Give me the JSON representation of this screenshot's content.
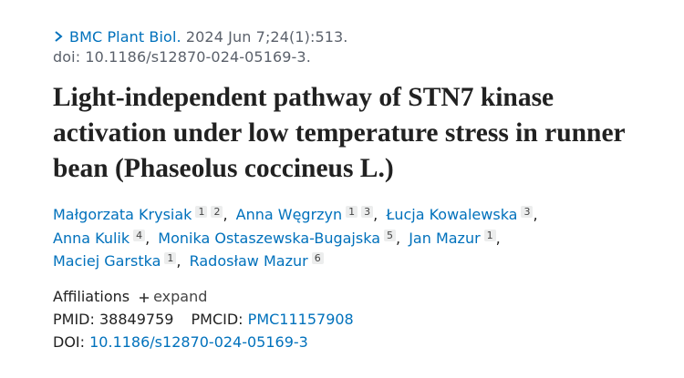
{
  "citation": {
    "journal": "BMC Plant Biol.",
    "details": "2024 Jun 7;24(1):513.",
    "doi": "doi: 10.1186/s12870-024-05169-3."
  },
  "title": "Light-independent pathway of STN7 kinase activation under low temperature stress in runner bean (Phaseolus coccineus L.)",
  "authors": [
    {
      "name": "Małgorzata Krysiak",
      "affiliations": [
        1,
        2
      ]
    },
    {
      "name": "Anna Węgrzyn",
      "affiliations": [
        1,
        3
      ]
    },
    {
      "name": "Łucja Kowalewska",
      "affiliations": [
        3
      ]
    },
    {
      "name": "Anna Kulik",
      "affiliations": [
        4
      ]
    },
    {
      "name": "Monika Ostaszewska-Bugajska",
      "affiliations": [
        5
      ]
    },
    {
      "name": "Jan Mazur",
      "affiliations": [
        1
      ]
    },
    {
      "name": "Maciej Garstka",
      "affiliations": [
        1
      ]
    },
    {
      "name": "Radosław Mazur",
      "affiliations": [
        6
      ]
    }
  ],
  "author_separator": ",",
  "affiliations": {
    "label": "Affiliations",
    "toggle": "expand"
  },
  "identifiers": {
    "pmid_label": "PMID:",
    "pmid": "38849759",
    "pmcid_label": "PMCID:",
    "pmcid": "PMC11157908",
    "doi_label": "DOI:",
    "doi": "10.1186/s12870-024-05169-3"
  }
}
